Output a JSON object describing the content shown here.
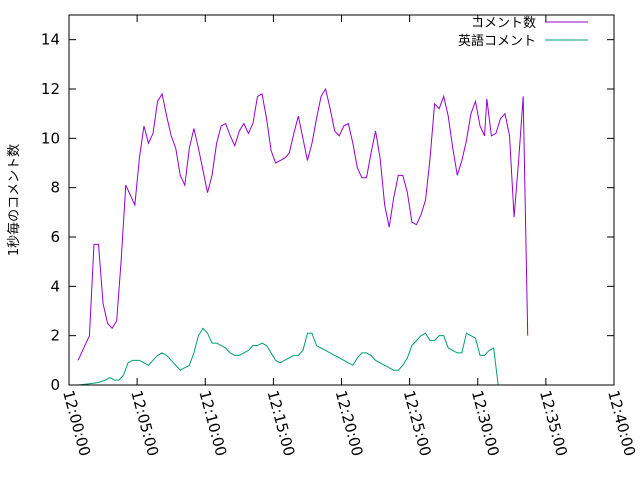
{
  "chart_data": {
    "type": "line",
    "title": "",
    "xlabel": "",
    "ylabel": "1秒毎のコメント数",
    "xlim": [
      "12:00:00",
      "12:40:00"
    ],
    "ylim": [
      0,
      15
    ],
    "x_ticks": [
      "12:00:00",
      "12:05:00",
      "12:10:00",
      "12:15:00",
      "12:20:00",
      "12:25:00",
      "12:30:00",
      "12:35:00",
      "12:40:00"
    ],
    "y_ticks": [
      0,
      2,
      4,
      6,
      8,
      10,
      12,
      14
    ],
    "grid": false,
    "legend_position": "top-right",
    "series": [
      {
        "name": "コメント数",
        "color": "#9400d3",
        "points": [
          [
            "12:00:40",
            1.0
          ],
          [
            "12:01:30",
            2.0
          ],
          [
            "12:01:50",
            5.7
          ],
          [
            "12:02:10",
            5.7
          ],
          [
            "12:02:30",
            3.3
          ],
          [
            "12:02:50",
            2.5
          ],
          [
            "12:03:10",
            2.3
          ],
          [
            "12:03:30",
            2.6
          ],
          [
            "12:03:50",
            5.1
          ],
          [
            "12:04:10",
            8.1
          ],
          [
            "12:04:40",
            7.5
          ],
          [
            "12:04:50",
            7.3
          ],
          [
            "12:05:10",
            9.2
          ],
          [
            "12:05:30",
            10.5
          ],
          [
            "12:05:50",
            9.8
          ],
          [
            "12:06:10",
            10.2
          ],
          [
            "12:06:30",
            11.5
          ],
          [
            "12:06:50",
            11.8
          ],
          [
            "12:07:10",
            10.9
          ],
          [
            "12:07:30",
            10.1
          ],
          [
            "12:07:50",
            9.6
          ],
          [
            "12:08:10",
            8.5
          ],
          [
            "12:08:30",
            8.1
          ],
          [
            "12:08:50",
            9.6
          ],
          [
            "12:09:10",
            10.4
          ],
          [
            "12:09:30",
            9.6
          ],
          [
            "12:09:50",
            8.7
          ],
          [
            "12:10:10",
            7.8
          ],
          [
            "12:10:30",
            8.5
          ],
          [
            "12:10:50",
            9.8
          ],
          [
            "12:11:10",
            10.5
          ],
          [
            "12:11:30",
            10.6
          ],
          [
            "12:11:50",
            10.1
          ],
          [
            "12:12:10",
            9.7
          ],
          [
            "12:12:30",
            10.3
          ],
          [
            "12:12:50",
            10.6
          ],
          [
            "12:13:10",
            10.2
          ],
          [
            "12:13:30",
            10.6
          ],
          [
            "12:13:50",
            11.7
          ],
          [
            "12:14:10",
            11.8
          ],
          [
            "12:14:30",
            10.8
          ],
          [
            "12:14:50",
            9.5
          ],
          [
            "12:15:10",
            9.0
          ],
          [
            "12:15:30",
            9.1
          ],
          [
            "12:15:50",
            9.2
          ],
          [
            "12:16:10",
            9.4
          ],
          [
            "12:16:30",
            10.2
          ],
          [
            "12:16:50",
            10.9
          ],
          [
            "12:17:10",
            10.0
          ],
          [
            "12:17:30",
            9.1
          ],
          [
            "12:17:50",
            9.8
          ],
          [
            "12:18:10",
            10.8
          ],
          [
            "12:18:30",
            11.7
          ],
          [
            "12:18:50",
            12.0
          ],
          [
            "12:19:10",
            11.2
          ],
          [
            "12:19:30",
            10.3
          ],
          [
            "12:19:50",
            10.1
          ],
          [
            "12:20:10",
            10.5
          ],
          [
            "12:20:30",
            10.6
          ],
          [
            "12:20:50",
            9.8
          ],
          [
            "12:21:10",
            8.8
          ],
          [
            "12:21:30",
            8.4
          ],
          [
            "12:21:50",
            8.4
          ],
          [
            "12:22:10",
            9.4
          ],
          [
            "12:22:30",
            10.3
          ],
          [
            "12:22:50",
            9.2
          ],
          [
            "12:23:10",
            7.3
          ],
          [
            "12:23:30",
            6.4
          ],
          [
            "12:23:50",
            7.6
          ],
          [
            "12:24:10",
            8.5
          ],
          [
            "12:24:30",
            8.5
          ],
          [
            "12:24:50",
            7.8
          ],
          [
            "12:25:10",
            6.6
          ],
          [
            "12:25:30",
            6.5
          ],
          [
            "12:25:50",
            6.9
          ],
          [
            "12:26:10",
            7.5
          ],
          [
            "12:26:30",
            9.2
          ],
          [
            "12:26:50",
            11.4
          ],
          [
            "12:27:10",
            11.2
          ],
          [
            "12:27:30",
            11.7
          ],
          [
            "12:27:50",
            10.9
          ],
          [
            "12:28:10",
            9.6
          ],
          [
            "12:28:30",
            8.5
          ],
          [
            "12:28:50",
            9.1
          ],
          [
            "12:29:10",
            9.9
          ],
          [
            "12:29:30",
            11.0
          ],
          [
            "12:29:50",
            11.5
          ],
          [
            "12:30:10",
            10.5
          ],
          [
            "12:30:30",
            10.1
          ],
          [
            "12:30:40",
            11.6
          ],
          [
            "12:31:00",
            10.1
          ],
          [
            "12:31:20",
            10.2
          ],
          [
            "12:31:40",
            10.8
          ],
          [
            "12:32:00",
            11.0
          ],
          [
            "12:32:20",
            10.1
          ],
          [
            "12:32:40",
            6.8
          ],
          [
            "12:33:00",
            9.1
          ],
          [
            "12:33:20",
            11.7
          ],
          [
            "12:33:40",
            2.0
          ]
        ]
      },
      {
        "name": "英語コメント",
        "color": "#009e73",
        "points": [
          [
            "12:00:40",
            0.0
          ],
          [
            "12:01:30",
            0.05
          ],
          [
            "12:02:10",
            0.1
          ],
          [
            "12:02:40",
            0.2
          ],
          [
            "12:03:00",
            0.3
          ],
          [
            "12:03:20",
            0.2
          ],
          [
            "12:03:40",
            0.2
          ],
          [
            "12:04:00",
            0.4
          ],
          [
            "12:04:20",
            0.9
          ],
          [
            "12:04:40",
            1.0
          ],
          [
            "12:05:10",
            1.0
          ],
          [
            "12:05:30",
            0.9
          ],
          [
            "12:05:50",
            0.8
          ],
          [
            "12:06:10",
            1.0
          ],
          [
            "12:06:30",
            1.2
          ],
          [
            "12:06:50",
            1.3
          ],
          [
            "12:07:10",
            1.2
          ],
          [
            "12:07:30",
            1.0
          ],
          [
            "12:07:50",
            0.8
          ],
          [
            "12:08:10",
            0.6
          ],
          [
            "12:08:30",
            0.7
          ],
          [
            "12:08:50",
            0.8
          ],
          [
            "12:09:10",
            1.3
          ],
          [
            "12:09:30",
            2.0
          ],
          [
            "12:09:50",
            2.3
          ],
          [
            "12:10:10",
            2.1
          ],
          [
            "12:10:30",
            1.7
          ],
          [
            "12:10:50",
            1.7
          ],
          [
            "12:11:10",
            1.6
          ],
          [
            "12:11:30",
            1.5
          ],
          [
            "12:11:50",
            1.3
          ],
          [
            "12:12:10",
            1.2
          ],
          [
            "12:12:30",
            1.2
          ],
          [
            "12:12:50",
            1.3
          ],
          [
            "12:13:10",
            1.4
          ],
          [
            "12:13:30",
            1.6
          ],
          [
            "12:13:50",
            1.6
          ],
          [
            "12:14:10",
            1.7
          ],
          [
            "12:14:30",
            1.6
          ],
          [
            "12:14:50",
            1.3
          ],
          [
            "12:15:10",
            1.0
          ],
          [
            "12:15:30",
            0.9
          ],
          [
            "12:15:50",
            1.0
          ],
          [
            "12:16:10",
            1.1
          ],
          [
            "12:16:30",
            1.2
          ],
          [
            "12:16:50",
            1.2
          ],
          [
            "12:17:10",
            1.4
          ],
          [
            "12:17:30",
            2.1
          ],
          [
            "12:17:50",
            2.1
          ],
          [
            "12:18:10",
            1.6
          ],
          [
            "12:18:30",
            1.5
          ],
          [
            "12:18:50",
            1.4
          ],
          [
            "12:19:10",
            1.3
          ],
          [
            "12:19:30",
            1.2
          ],
          [
            "12:19:50",
            1.1
          ],
          [
            "12:20:10",
            1.0
          ],
          [
            "12:20:30",
            0.9
          ],
          [
            "12:20:50",
            0.8
          ],
          [
            "12:21:10",
            1.1
          ],
          [
            "12:21:30",
            1.3
          ],
          [
            "12:21:50",
            1.3
          ],
          [
            "12:22:10",
            1.2
          ],
          [
            "12:22:30",
            1.0
          ],
          [
            "12:22:50",
            0.9
          ],
          [
            "12:23:10",
            0.8
          ],
          [
            "12:23:30",
            0.7
          ],
          [
            "12:23:50",
            0.6
          ],
          [
            "12:24:10",
            0.6
          ],
          [
            "12:24:30",
            0.8
          ],
          [
            "12:24:50",
            1.1
          ],
          [
            "12:25:10",
            1.6
          ],
          [
            "12:25:30",
            1.8
          ],
          [
            "12:25:50",
            2.0
          ],
          [
            "12:26:10",
            2.1
          ],
          [
            "12:26:30",
            1.8
          ],
          [
            "12:26:50",
            1.8
          ],
          [
            "12:27:10",
            2.0
          ],
          [
            "12:27:30",
            2.0
          ],
          [
            "12:27:50",
            1.5
          ],
          [
            "12:28:10",
            1.4
          ],
          [
            "12:28:30",
            1.3
          ],
          [
            "12:28:50",
            1.3
          ],
          [
            "12:29:10",
            2.1
          ],
          [
            "12:29:30",
            2.0
          ],
          [
            "12:29:50",
            1.9
          ],
          [
            "12:30:10",
            1.2
          ],
          [
            "12:30:30",
            1.2
          ],
          [
            "12:30:50",
            1.4
          ],
          [
            "12:31:10",
            1.5
          ],
          [
            "12:31:30",
            0.0
          ]
        ]
      }
    ]
  }
}
